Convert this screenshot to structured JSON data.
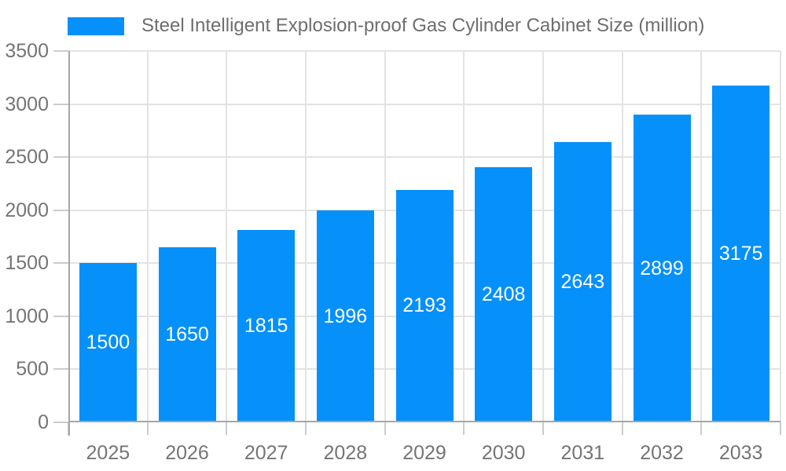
{
  "legend": {
    "label": "Steel Intelligent Explosion-proof Gas Cylinder Cabinet Size (million)"
  },
  "chart_data": {
    "type": "bar",
    "title": "Steel Intelligent Explosion-proof Gas Cylinder Cabinet Size (million)",
    "categories": [
      "2025",
      "2026",
      "2027",
      "2028",
      "2029",
      "2030",
      "2031",
      "2032",
      "2033"
    ],
    "values": [
      1500,
      1650,
      1815,
      1996,
      2193,
      2408,
      2643,
      2899,
      3175
    ],
    "series": [
      {
        "name": "Steel Intelligent Explosion-proof Gas Cylinder Cabinet Size (million)",
        "values": [
          1500,
          1650,
          1815,
          1996,
          2193,
          2408,
          2643,
          2899,
          3175
        ]
      }
    ],
    "xlabel": "",
    "ylabel": "",
    "ylim": [
      0,
      3500
    ],
    "yticks": [
      0,
      500,
      1000,
      1500,
      2000,
      2500,
      3000,
      3500
    ],
    "grid": true,
    "legend_position": "top-left",
    "value_labels": "inside-center",
    "colors": {
      "bar": "#0590FA",
      "grid_line": "#E3E3E3",
      "axis_line": "#A6A6A6",
      "tick_line": "#CCCCCC",
      "axis_text": "#757575",
      "legend_text": "#6E6E6E",
      "value_label_text": "#FFFFFF",
      "background": "#FFFFFF"
    }
  }
}
